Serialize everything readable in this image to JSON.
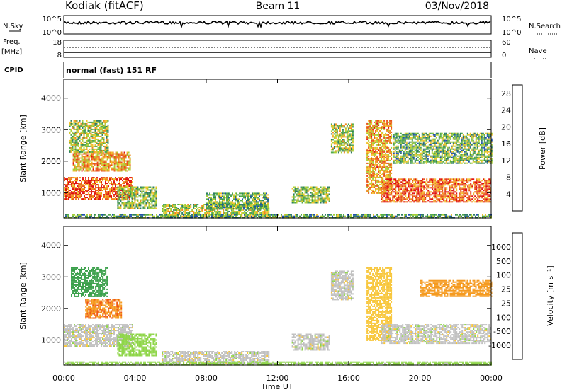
{
  "header": {
    "station": "Kodiak (fitACF)",
    "beam": "Beam 11",
    "date": "03/Nov/2018"
  },
  "top_panels": {
    "nsky": {
      "label": "N.Sky",
      "ticks": [
        "10^5",
        "10^0"
      ]
    },
    "nsearch": {
      "label": "N.Search",
      "ticks": [
        "10^5",
        "10^0"
      ]
    },
    "freq": {
      "label_line1": "Freq.",
      "label_line2": "[MHz]",
      "ticks": [
        "18",
        "8"
      ]
    },
    "nave": {
      "label": "Nave",
      "ticks": [
        "60",
        "0"
      ]
    },
    "cpid": {
      "label": "CPID",
      "value": "normal (fast) 151 RF"
    }
  },
  "colors": {
    "power": [
      "#0018e8",
      "#1f4fb0",
      "#2e7d62",
      "#53a94a",
      "#a8cf34",
      "#f2c12a",
      "#f08a1e",
      "#e8531a",
      "#e01010"
    ],
    "velocity": [
      "#e01010",
      "#f05a14",
      "#f59a1f",
      "#f8c63a",
      "#c0c0c0",
      "#c0c0c0",
      "#8fd64a",
      "#3aa04a",
      "#2d6e78",
      "#1e3fae"
    ]
  },
  "chart_data": [
    {
      "type": "heatmap",
      "name": "power-panel",
      "ylabel": "Slant Range [km]",
      "yticks": [
        "1000",
        "2000",
        "3000",
        "4000"
      ],
      "ylim": [
        200,
        4600
      ],
      "xlim": [
        0,
        24
      ],
      "colorbar": {
        "label": "Power [dB]",
        "ticks": [
          "4",
          "8",
          "12",
          "16",
          "20",
          "24",
          "28"
        ],
        "range": [
          0,
          30
        ]
      },
      "echo_regions": [
        {
          "t": [
            0.0,
            3.9
          ],
          "r": [
            800,
            1500
          ],
          "level": 0.85
        },
        {
          "t": [
            0.5,
            3.7
          ],
          "r": [
            1700,
            2300
          ],
          "level": 0.7
        },
        {
          "t": [
            0.3,
            2.5
          ],
          "r": [
            2300,
            3300
          ],
          "level": 0.5
        },
        {
          "t": [
            3.0,
            5.2
          ],
          "r": [
            500,
            1200
          ],
          "level": 0.45
        },
        {
          "t": [
            5.5,
            11.5
          ],
          "r": [
            250,
            650
          ],
          "level": 0.5
        },
        {
          "t": [
            8.0,
            11.5
          ],
          "r": [
            500,
            1000
          ],
          "level": 0.4
        },
        {
          "t": [
            12.8,
            14.9
          ],
          "r": [
            700,
            1200
          ],
          "level": 0.45
        },
        {
          "t": [
            15.0,
            16.2
          ],
          "r": [
            2300,
            3200
          ],
          "level": 0.5
        },
        {
          "t": [
            17.0,
            18.4
          ],
          "r": [
            1000,
            3300
          ],
          "level": 0.7
        },
        {
          "t": [
            17.8,
            24.0
          ],
          "r": [
            700,
            1450
          ],
          "level": 0.85
        },
        {
          "t": [
            18.5,
            24.0
          ],
          "r": [
            1950,
            2900
          ],
          "level": 0.4
        },
        {
          "t": [
            0.0,
            24.0
          ],
          "r": [
            200,
            320
          ],
          "level": 0.35
        }
      ]
    },
    {
      "type": "heatmap",
      "name": "velocity-panel",
      "ylabel": "Slant Range [km]",
      "yticks": [
        "1000",
        "2000",
        "3000",
        "4000"
      ],
      "ylim": [
        200,
        4600
      ],
      "xlim": [
        0,
        24
      ],
      "xlabel": "Time UT",
      "xticks": [
        "00:00",
        "04:00",
        "08:00",
        "12:00",
        "16:00",
        "20:00",
        "00:00"
      ],
      "colorbar": {
        "label": "Velocity [m s⁻¹]",
        "ticks": [
          "1000",
          "500",
          "100",
          "25",
          "-25",
          "-100",
          "-500",
          "-1000"
        ],
        "range": [
          -1200,
          1200
        ]
      },
      "echo_regions": [
        {
          "t": [
            0.0,
            3.9
          ],
          "r": [
            800,
            1500
          ],
          "value": 0
        },
        {
          "t": [
            1.2,
            3.2
          ],
          "r": [
            1700,
            2300
          ],
          "value": -450
        },
        {
          "t": [
            0.4,
            2.4
          ],
          "r": [
            2400,
            3300
          ],
          "value": 300
        },
        {
          "t": [
            3.0,
            5.2
          ],
          "r": [
            500,
            1200
          ],
          "value": 60
        },
        {
          "t": [
            5.5,
            11.5
          ],
          "r": [
            250,
            650
          ],
          "value": 0
        },
        {
          "t": [
            12.8,
            14.9
          ],
          "r": [
            700,
            1200
          ],
          "value": 0
        },
        {
          "t": [
            15.0,
            16.2
          ],
          "r": [
            2300,
            3200
          ],
          "value": 0
        },
        {
          "t": [
            17.0,
            18.4
          ],
          "r": [
            1000,
            3300
          ],
          "value": -60
        },
        {
          "t": [
            17.8,
            24.0
          ],
          "r": [
            900,
            1500
          ],
          "value": 0
        },
        {
          "t": [
            20.0,
            24.0
          ],
          "r": [
            2400,
            2900
          ],
          "value": -300
        },
        {
          "t": [
            0.0,
            24.0
          ],
          "r": [
            200,
            320
          ],
          "value": 50
        }
      ]
    }
  ]
}
